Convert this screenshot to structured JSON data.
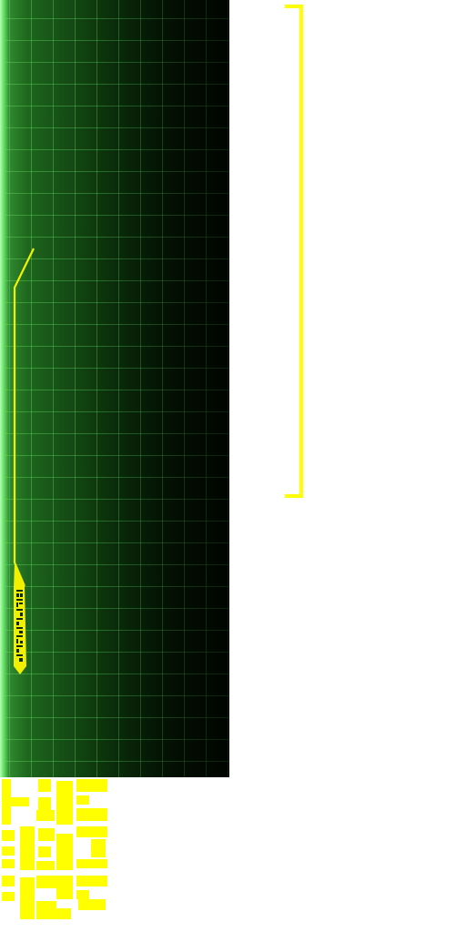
{
  "hud": {
    "panel_color": "#0f400f",
    "grid_color": "#5adc5a",
    "accent_color": "#ffff00",
    "callout_label": "",
    "icons": [
      "callout-line-icon",
      "bracket-icon",
      "glyph-sprite-icon"
    ]
  }
}
